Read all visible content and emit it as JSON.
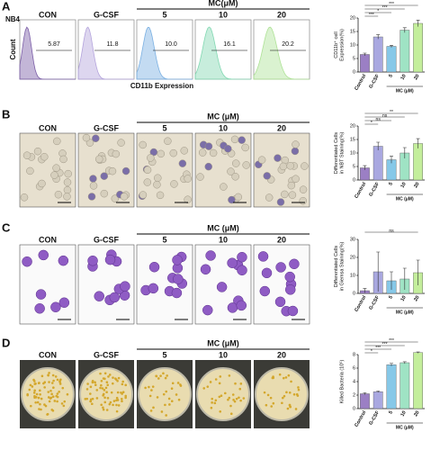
{
  "panels": [
    {
      "letter": "A",
      "cell_line": "NB4",
      "y_label": "Count",
      "x_label": "CD11b Expression",
      "group": "MC(μM)",
      "titles": [
        "CON",
        "G-CSF",
        "5",
        "10",
        "20"
      ],
      "gates": [
        "5.87",
        "11.8",
        "10.0",
        "16.1",
        "20.2"
      ]
    },
    {
      "letter": "B",
      "group": "MC  (μM)",
      "titles": [
        "CON",
        "G-CSF",
        "5",
        "10",
        "20"
      ]
    },
    {
      "letter": "C",
      "group": "MC  (μM)",
      "titles": [
        "CON",
        "G-CSF",
        "5",
        "10",
        "20"
      ]
    },
    {
      "letter": "D",
      "group": "MC  (μM)",
      "titles": [
        "CON",
        "G-CSF",
        "5",
        "10",
        "20"
      ]
    }
  ],
  "chart_data": [
    {
      "type": "bar",
      "y_label": [
        "CD11b⁺ cell",
        "Expression(%)"
      ],
      "categories": [
        "Control",
        "G-CSF",
        "5",
        "10",
        "20"
      ],
      "group_label": "MC (μM)",
      "values": [
        6.5,
        13,
        9.5,
        15.5,
        18
      ],
      "errors": [
        0.5,
        0.8,
        0.4,
        0.9,
        1.2
      ],
      "colors": [
        "#9b7fc4",
        "#a9a8e0",
        "#86c8e8",
        "#9fe3c4",
        "#c4ee9c"
      ],
      "ylim": [
        0,
        20
      ],
      "yticks": [
        0,
        5,
        10,
        15,
        20
      ],
      "annotations": [
        "***",
        "*",
        "***",
        "***"
      ]
    },
    {
      "type": "bar",
      "y_label": [
        "Differentiated Cells",
        "in NBT Staining(%)"
      ],
      "categories": [
        "Control",
        "G-CSF",
        "5",
        "10",
        "20"
      ],
      "group_label": "MC (μM)",
      "values": [
        4.5,
        12.5,
        7.5,
        10,
        13.5
      ],
      "errors": [
        0.8,
        1.5,
        1.3,
        2,
        1.8
      ],
      "colors": [
        "#9b7fc4",
        "#a9a8e0",
        "#86c8e8",
        "#9fe3c4",
        "#c4ee9c"
      ],
      "ylim": [
        0,
        20
      ],
      "yticks": [
        0,
        5,
        10,
        15,
        20
      ],
      "annotations": [
        "*",
        "ns",
        "ns",
        "**"
      ]
    },
    {
      "type": "bar",
      "y_label": [
        "Differentiated Cells",
        "in Giemsa Staining(%)"
      ],
      "categories": [
        "Control",
        "G-CSF",
        "5",
        "10",
        "20"
      ],
      "group_label": "MC (μM)",
      "values": [
        1.5,
        12,
        7,
        8,
        11.5
      ],
      "errors": [
        1.2,
        11,
        5,
        6,
        7
      ],
      "colors": [
        "#9b7fc4",
        "#a9a8e0",
        "#86c8e8",
        "#9fe3c4",
        "#c4ee9c"
      ],
      "ylim": [
        0,
        30
      ],
      "yticks": [
        0,
        10,
        20,
        30
      ],
      "annotations": [
        "ns"
      ]
    },
    {
      "type": "bar",
      "y_label": [
        "Killed Bacteria (10⁵)"
      ],
      "categories": [
        "Control",
        "G-CSF",
        "5",
        "10",
        "20"
      ],
      "group_label": "MC (μM)",
      "values": [
        2.2,
        2.5,
        6.5,
        6.8,
        8.3
      ],
      "errors": [
        0.15,
        0.1,
        0.2,
        0.15,
        0.1
      ],
      "colors": [
        "#9b7fc4",
        "#a9a8e0",
        "#86c8e8",
        "#9fe3c4",
        "#c4ee9c"
      ],
      "ylim": [
        0,
        8
      ],
      "yticks": [
        0,
        2,
        4,
        6,
        8
      ],
      "annotations": [
        "*",
        "***",
        "***",
        "***"
      ]
    }
  ]
}
